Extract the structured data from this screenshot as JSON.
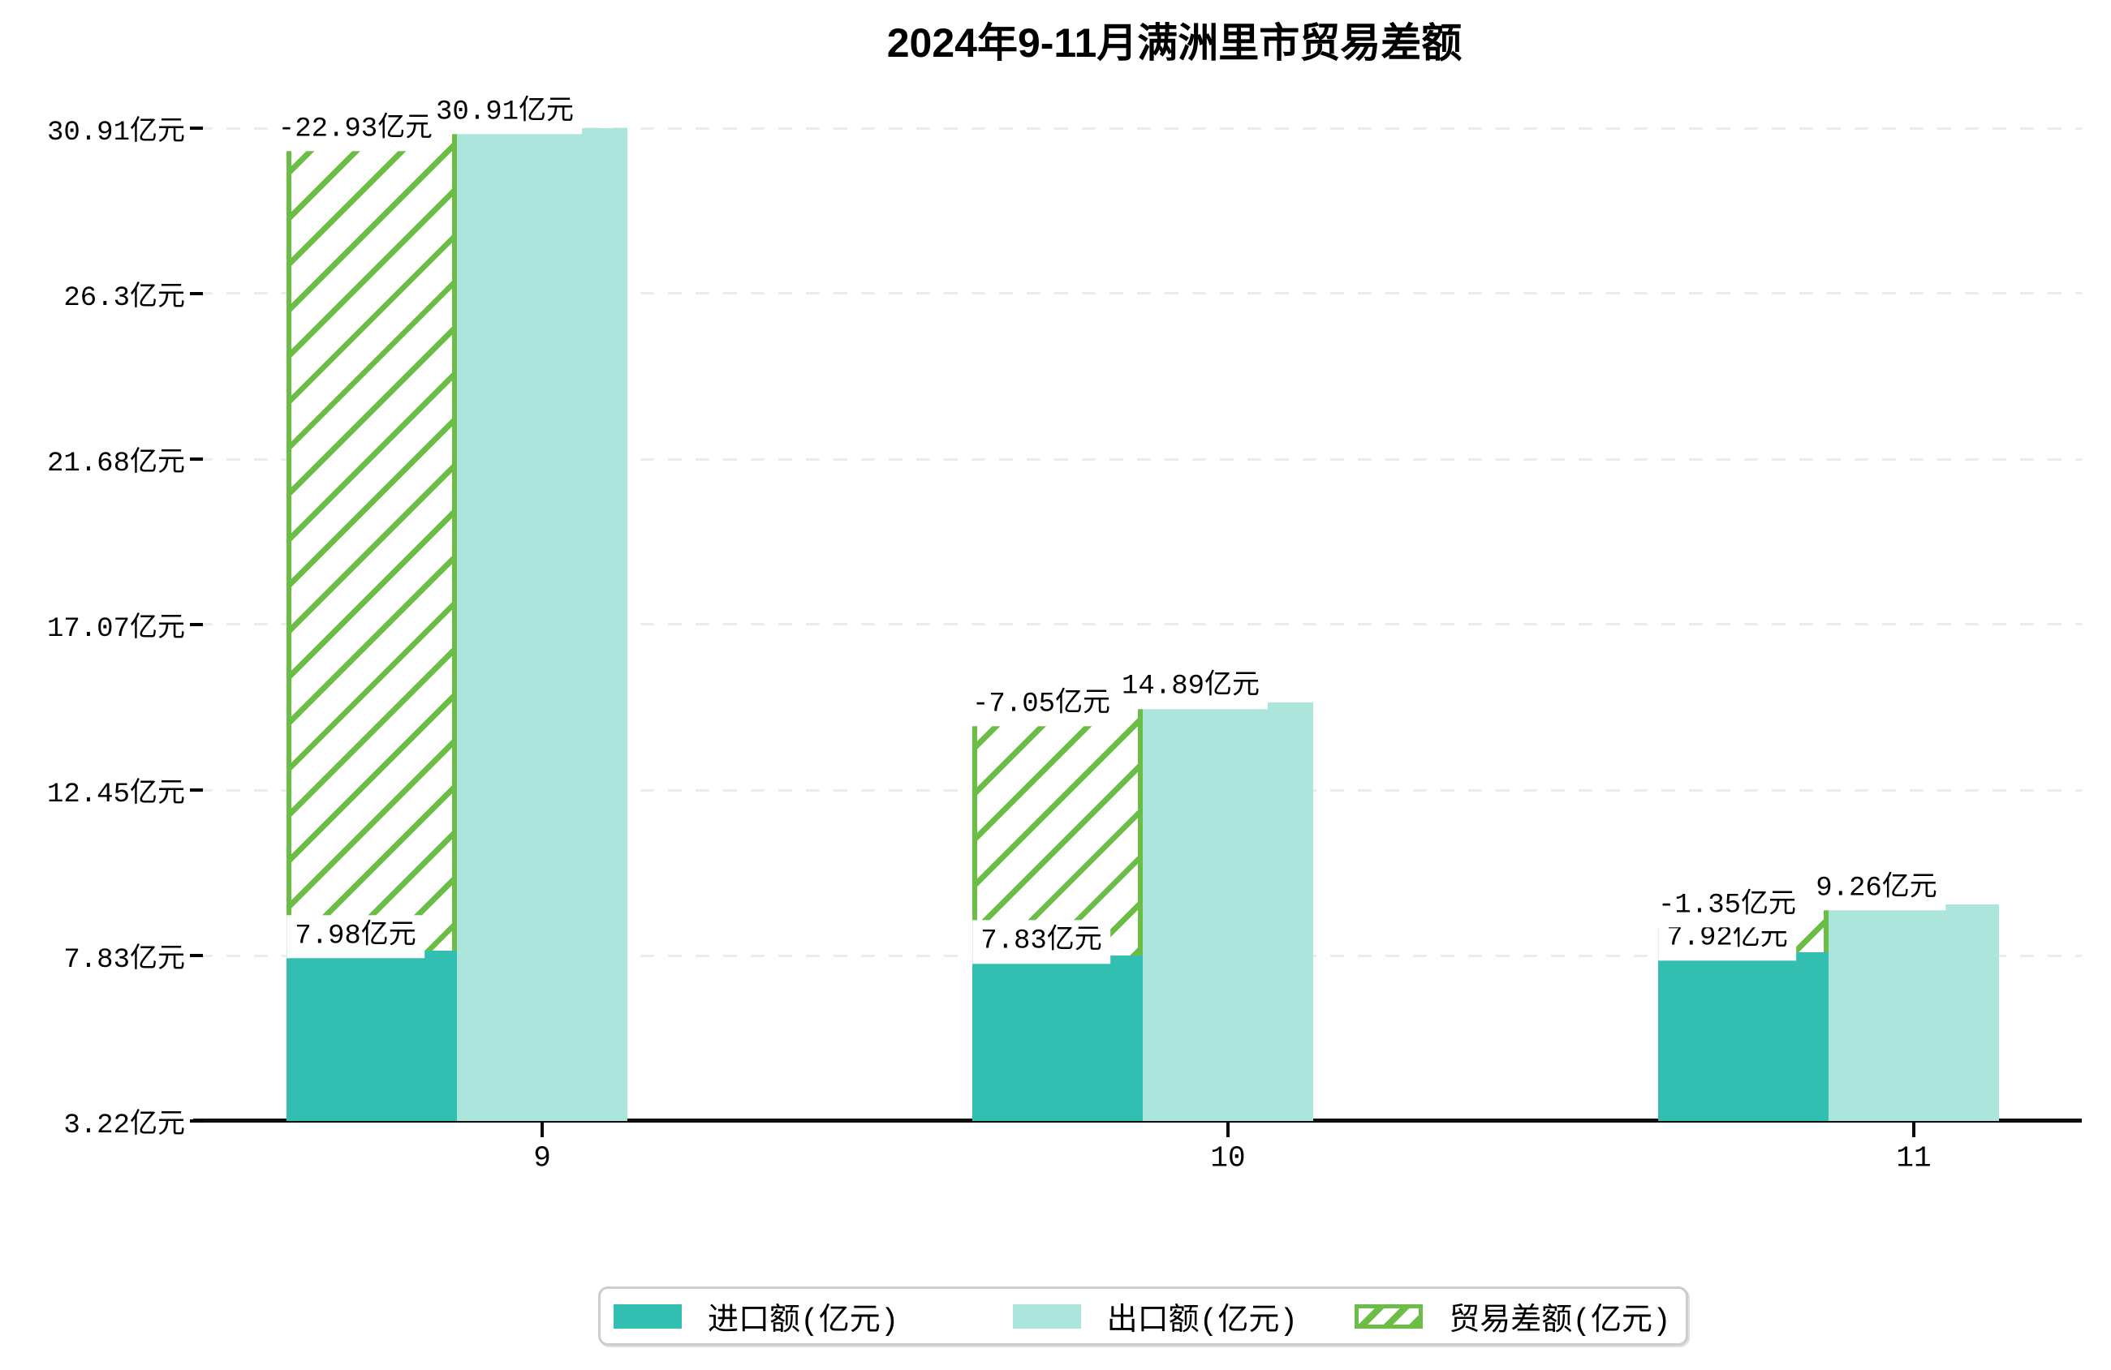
{
  "chart_data": {
    "type": "bar",
    "title": "2024年9-11月满洲里市贸易差额",
    "categories": [
      "9",
      "10",
      "11"
    ],
    "series": [
      {
        "name": "进口额(亿元)",
        "role": "import",
        "style": "solid",
        "color": "#32BFB2",
        "values": [
          7.98,
          7.83,
          7.92
        ],
        "labels": [
          "7.98亿元",
          "7.83亿元",
          "7.92亿元"
        ]
      },
      {
        "name": "出口额(亿元)",
        "role": "export",
        "style": "solid",
        "color": "#ABE5DC",
        "values": [
          30.91,
          14.89,
          9.26
        ],
        "labels": [
          "30.91亿元",
          "14.89亿元",
          "9.26亿元"
        ]
      },
      {
        "name": "贸易差额(亿元)",
        "role": "balance",
        "style": "hatched",
        "color": "#6ABD45",
        "values": [
          -22.93,
          -7.05,
          -1.35
        ],
        "labels": [
          "-22.93亿元",
          "-7.05亿元",
          "-1.35亿元"
        ]
      }
    ],
    "y_axis": {
      "min": 3.22,
      "max": 30.91,
      "ticks": [
        {
          "label": "30.91亿元",
          "value": 30.91
        },
        {
          "label": "26.3亿元",
          "value": 26.3
        },
        {
          "label": "21.68亿元",
          "value": 21.68
        },
        {
          "label": "17.07亿元",
          "value": 17.07
        },
        {
          "label": "12.45亿元",
          "value": 12.45
        },
        {
          "label": "7.83亿元",
          "value": 7.83
        },
        {
          "label": "3.22亿元",
          "value": 3.22
        }
      ]
    },
    "xlabel": "",
    "ylabel": "",
    "grid": "horizontal-dashed",
    "legend_position": "bottom-center",
    "colors": {
      "grid": "#ececec",
      "axis": "#0d0d0d",
      "text": "#000000",
      "label_background": "#ffffff"
    }
  }
}
